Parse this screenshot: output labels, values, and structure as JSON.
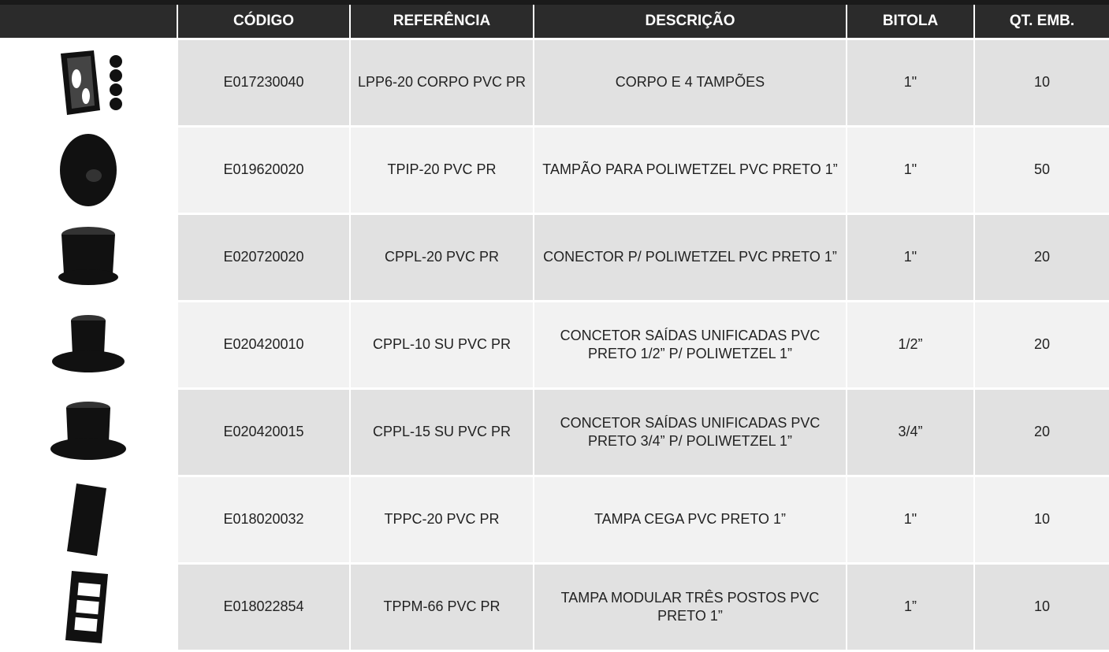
{
  "table": {
    "headers": [
      "CÓDIGO",
      "REFERÊNCIA",
      "DESCRIÇÃO",
      "BITOLA",
      "QT. EMB."
    ],
    "rows": [
      [
        "E017230040",
        "LPP6-20 CORPO PVC PR",
        "CORPO E 4 TAMPÕES",
        "1\"",
        "10"
      ],
      [
        "E019620020",
        "TPIP-20 PVC PR",
        "TAMPÃO PARA POLIWETZEL PVC PRETO 1”",
        "1\"",
        "50"
      ],
      [
        "E020720020",
        "CPPL-20 PVC PR",
        "CONECTOR P/ POLIWETZEL PVC PRETO 1”",
        "1\"",
        "20"
      ],
      [
        "E020420010",
        "CPPL-10 SU PVC PR",
        "CONCETOR SAÍDAS UNIFICADAS PVC PRETO 1/2” P/ POLIWETZEL 1”",
        "1/2”",
        "20"
      ],
      [
        "E020420015",
        "CPPL-15 SU PVC PR",
        "CONCETOR SAÍDAS UNIFICADAS PVC PRETO 3/4” P/ POLIWETZEL 1”",
        "3/4”",
        "20"
      ],
      [
        "E018020032",
        "TPPC-20 PVC PR",
        "TAMPA CEGA PVC PRETO 1”",
        "1\"",
        "10"
      ],
      [
        "E018022854",
        "TPPM-66 PVC PR",
        "TAMPA MODULAR TRÊS POSTOS PVC PRETO 1”",
        "1”",
        "10"
      ]
    ]
  }
}
